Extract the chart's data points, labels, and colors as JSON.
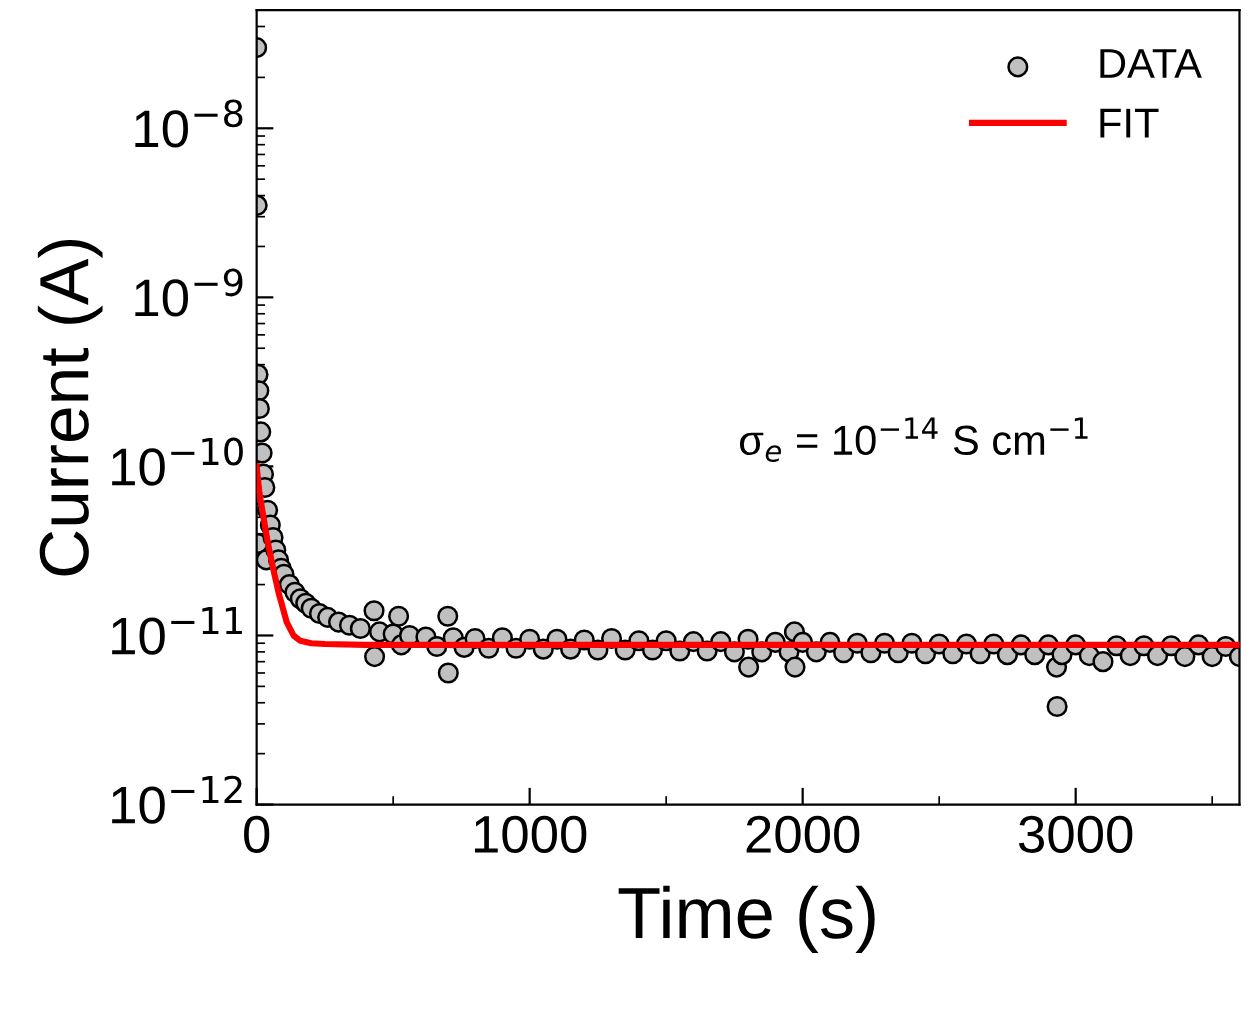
{
  "chart_data": {
    "type": "scatter",
    "xlabel": "Time (s)",
    "ylabel": "Current (A)",
    "log": "y",
    "xlim": [
      0,
      3600
    ],
    "xticks": [
      0,
      1000,
      2000,
      3000
    ],
    "ylim": [
      1e-12,
      5e-08
    ],
    "yticks": [
      {
        "value": 1e-12,
        "label": "10$^{−12}$"
      },
      {
        "value": 1e-11,
        "label": "10$^{−11}$"
      },
      {
        "value": 1e-10,
        "label": "10$^{−10}$"
      },
      {
        "value": 1e-09,
        "label": "10$^{−9}$"
      },
      {
        "value": 1e-08,
        "label": "10$^{−8}$"
      }
    ],
    "legend": "top right",
    "grid": false,
    "annotations": [
      "σ$_{e}$ = 10$^{−14}$ S cm$^{−1}$"
    ],
    "series": [
      {
        "name": "DATA",
        "color": "#c0c0c0",
        "marker": "circle",
        "x": [
          0,
          2,
          4,
          5,
          8,
          10,
          15,
          20,
          25,
          30,
          35,
          40,
          50,
          60,
          70,
          80,
          90,
          100,
          120,
          140,
          160,
          180,
          200,
          230,
          260,
          300,
          340,
          380,
          430,
          432,
          450,
          500,
          520,
          530,
          560,
          620,
          660,
          700,
          702,
          720,
          760,
          800,
          850,
          900,
          950,
          1000,
          1050,
          1100,
          1150,
          1200,
          1250,
          1300,
          1350,
          1400,
          1450,
          1500,
          1550,
          1600,
          1650,
          1700,
          1750,
          1800,
          1802,
          1850,
          1900,
          1950,
          1970,
          1972,
          2000,
          2050,
          2100,
          2150,
          2200,
          2250,
          2300,
          2350,
          2400,
          2450,
          2500,
          2550,
          2600,
          2650,
          2700,
          2750,
          2800,
          2850,
          2900,
          2930,
          2932,
          2950,
          3000,
          3050,
          3100,
          3150,
          3200,
          3250,
          3300,
          3350,
          3400,
          3450,
          3500,
          3550,
          3600
        ],
        "values": [
          3e-08,
          3.5e-09,
          3.5e-11,
          3.5e-10,
          2.8e-10,
          2.2e-10,
          1.6e-10,
          1.2e-10,
          9e-11,
          7.5e-11,
          2.8e-11,
          5.5e-11,
          4.5e-11,
          3.8e-11,
          3.2e-11,
          2.8e-11,
          2.5e-11,
          2.3e-11,
          2e-11,
          1.8e-11,
          1.65e-11,
          1.55e-11,
          1.45e-11,
          1.35e-11,
          1.28e-11,
          1.2e-11,
          1.15e-11,
          1.1e-11,
          1.4e-11,
          7.5e-12,
          1.05e-11,
          1.02e-11,
          1.3e-11,
          8.8e-12,
          1e-11,
          9.8e-12,
          8.6e-12,
          1.3e-11,
          6e-12,
          9.7e-12,
          8.5e-12,
          9.6e-12,
          8.4e-12,
          9.7e-12,
          8.4e-12,
          9.5e-12,
          8.3e-12,
          9.5e-12,
          8.3e-12,
          9.4e-12,
          8.2e-12,
          9.6e-12,
          8.2e-12,
          9.3e-12,
          8.2e-12,
          9.3e-12,
          8.1e-12,
          9.2e-12,
          8.1e-12,
          9.2e-12,
          8e-12,
          9.5e-12,
          6.5e-12,
          8e-12,
          9.1e-12,
          8e-12,
          1.05e-11,
          6.5e-12,
          9.1e-12,
          8e-12,
          9.1e-12,
          7.9e-12,
          9e-12,
          7.9e-12,
          9e-12,
          7.9e-12,
          9e-12,
          7.8e-12,
          8.9e-12,
          7.8e-12,
          8.9e-12,
          7.8e-12,
          8.9e-12,
          7.7e-12,
          8.8e-12,
          7.7e-12,
          8.8e-12,
          6.5e-12,
          3.8e-12,
          7.7e-12,
          8.8e-12,
          7.6e-12,
          7e-12,
          8.7e-12,
          7.6e-12,
          8.7e-12,
          7.6e-12,
          8.7e-12,
          7.5e-12,
          8.8e-12,
          7.5e-12,
          8.6e-12,
          7.5e-12
        ]
      },
      {
        "name": "FIT",
        "type": "line",
        "color": "#ff0000",
        "marker": "none",
        "line_style": "solid",
        "x": [
          0,
          10,
          25,
          40,
          60,
          80,
          110,
          135,
          160,
          200,
          250,
          400,
          1000,
          2000,
          3000,
          3600
        ],
        "values": [
          1e-10,
          7e-11,
          5e-11,
          3.6e-11,
          2.5e-11,
          1.8e-11,
          1.2e-11,
          1e-11,
          9.3e-12,
          9e-12,
          8.9e-12,
          8.8e-12,
          8.8e-12,
          8.8e-12,
          8.8e-12,
          8.8e-12
        ]
      }
    ]
  }
}
